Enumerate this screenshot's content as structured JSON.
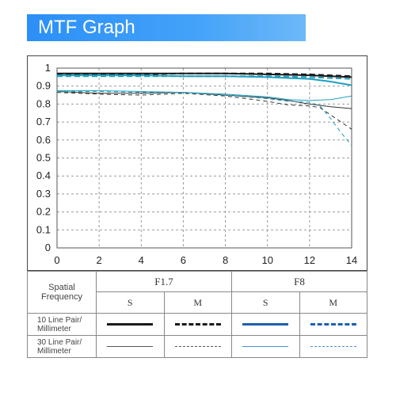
{
  "banner": {
    "title": "MTF Graph"
  },
  "colors": {
    "banner": "#2b8ff7",
    "f17": "#1a1a1a",
    "f8": "#1f9fc0",
    "f8_legend": "#1f5fb0"
  },
  "legend": {
    "header_label": "Spatial\nFrequency",
    "groups": [
      "F1.7",
      "F8"
    ],
    "subheaders": [
      "S",
      "M",
      "S",
      "M"
    ],
    "rows": [
      "10 Line Pair/\nMillimeter",
      "30 Line Pair/\nMillimeter"
    ]
  },
  "chart_data": {
    "type": "line",
    "title": "",
    "xlabel": "",
    "ylabel": "",
    "xlim": [
      0,
      14
    ],
    "ylim": [
      0,
      1
    ],
    "xticks": [
      "0",
      "2",
      "4",
      "6",
      "8",
      "10",
      "12",
      "14"
    ],
    "yticks": [
      "0",
      "0.1",
      "0.2",
      "0.3",
      "0.4",
      "0.5",
      "0.6",
      "0.7",
      "0.8",
      "0.9",
      "1"
    ],
    "grid": true,
    "series": [
      {
        "aperture": "F1.7",
        "frequency": "10 lp/mm",
        "orientation": "S",
        "color": "#1a1a1a",
        "dash": false,
        "width": 2,
        "x": [
          0,
          2,
          4,
          6,
          8,
          10,
          12,
          13,
          14
        ],
        "y": [
          0.97,
          0.97,
          0.97,
          0.97,
          0.97,
          0.965,
          0.96,
          0.955,
          0.95
        ]
      },
      {
        "aperture": "F1.7",
        "frequency": "10 lp/mm",
        "orientation": "M",
        "color": "#1a1a1a",
        "dash": true,
        "width": 2,
        "x": [
          0,
          2,
          4,
          6,
          8,
          10,
          12,
          13,
          14
        ],
        "y": [
          0.965,
          0.965,
          0.965,
          0.97,
          0.97,
          0.97,
          0.965,
          0.96,
          0.955
        ]
      },
      {
        "aperture": "F1.7",
        "frequency": "30 lp/mm",
        "orientation": "S",
        "color": "#333333",
        "dash": false,
        "width": 1,
        "x": [
          0,
          2,
          4,
          6,
          8,
          10,
          11,
          12,
          13,
          14
        ],
        "y": [
          0.87,
          0.86,
          0.86,
          0.865,
          0.85,
          0.835,
          0.82,
          0.8,
          0.785,
          0.775
        ]
      },
      {
        "aperture": "F1.7",
        "frequency": "30 lp/mm",
        "orientation": "M",
        "color": "#333333",
        "dash": true,
        "width": 1,
        "x": [
          0,
          2,
          4,
          6,
          8,
          10,
          11,
          12,
          12.5,
          13,
          13.5,
          14
        ],
        "y": [
          0.865,
          0.855,
          0.85,
          0.86,
          0.845,
          0.815,
          0.795,
          0.79,
          0.78,
          0.74,
          0.7,
          0.66
        ]
      },
      {
        "aperture": "F8",
        "frequency": "10 lp/mm",
        "orientation": "S",
        "color": "#1f9fc0",
        "dash": false,
        "width": 2,
        "x": [
          0,
          2,
          4,
          6,
          8,
          10,
          12,
          13,
          14
        ],
        "y": [
          0.96,
          0.96,
          0.96,
          0.955,
          0.955,
          0.95,
          0.94,
          0.925,
          0.905
        ]
      },
      {
        "aperture": "F8",
        "frequency": "10 lp/mm",
        "orientation": "M",
        "color": "#1f9fc0",
        "dash": true,
        "width": 2,
        "x": [
          0,
          2,
          4,
          6,
          8,
          10,
          12,
          13,
          14
        ],
        "y": [
          0.955,
          0.955,
          0.955,
          0.955,
          0.955,
          0.955,
          0.95,
          0.945,
          0.94
        ]
      },
      {
        "aperture": "F8",
        "frequency": "30 lp/mm",
        "orientation": "S",
        "color": "#1f9fc0",
        "dash": false,
        "width": 1,
        "x": [
          0,
          2,
          4,
          6,
          8,
          10,
          11,
          12,
          13,
          14
        ],
        "y": [
          0.875,
          0.875,
          0.87,
          0.865,
          0.855,
          0.84,
          0.825,
          0.82,
          0.825,
          0.845
        ]
      },
      {
        "aperture": "F8",
        "frequency": "30 lp/mm",
        "orientation": "M",
        "color": "#1f9fc0",
        "dash": true,
        "width": 1,
        "x": [
          0,
          2,
          4,
          6,
          8,
          10,
          11,
          12,
          12.5,
          13,
          13.5,
          14
        ],
        "y": [
          0.87,
          0.87,
          0.865,
          0.865,
          0.85,
          0.83,
          0.815,
          0.81,
          0.79,
          0.72,
          0.64,
          0.57
        ]
      }
    ]
  }
}
